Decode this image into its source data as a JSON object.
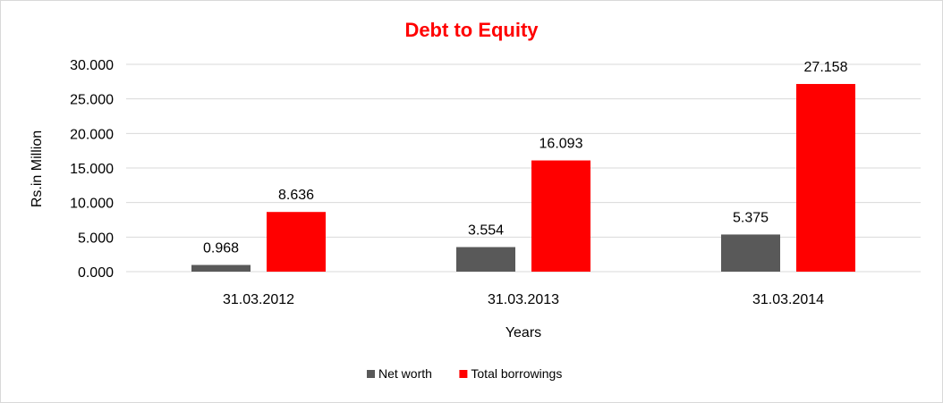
{
  "chart_data": {
    "type": "bar",
    "title": "Debt to Equity",
    "xlabel": "Years",
    "ylabel": "Rs.in Million",
    "categories": [
      "31.03.2012",
      "31.03.2013",
      "31.03.2014"
    ],
    "series": [
      {
        "name": "Net worth",
        "values": [
          0.968,
          3.554,
          5.375
        ],
        "labels": [
          "0.968",
          "3.554",
          "5.375"
        ],
        "color": "#595959"
      },
      {
        "name": "Total borrowings",
        "values": [
          8.636,
          16.093,
          27.158
        ],
        "labels": [
          "8.636",
          "16.093",
          "27.158"
        ],
        "color": "#ff0000"
      }
    ],
    "ylim": [
      0,
      30
    ],
    "yticks": [
      0,
      5,
      10,
      15,
      20,
      25,
      30
    ],
    "ytick_labels": [
      "0.000",
      "5.000",
      "10.000",
      "15.000",
      "20.000",
      "25.000",
      "30.000"
    ],
    "grid": true,
    "legend_position": "bottom",
    "title_color": "#ff0000",
    "gridline_color": "#d9d9d9"
  }
}
